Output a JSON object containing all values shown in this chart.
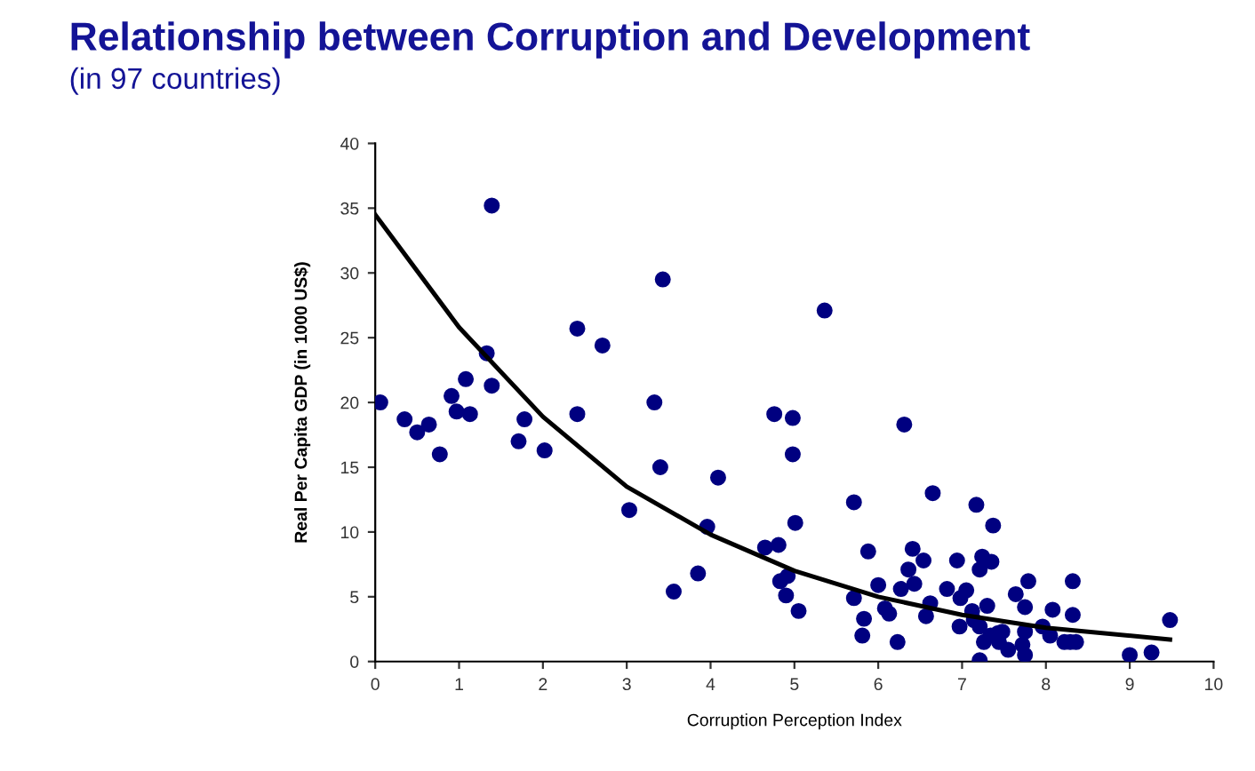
{
  "chart_data": {
    "type": "scatter",
    "title": "Relationship between Corruption and Development",
    "subtitle": "(in 97 countries)",
    "xlabel": "Corruption Perception Index",
    "ylabel": "Real Per Capita GDP (in 1000 US$)",
    "xlim": [
      0,
      10
    ],
    "xticks": [
      0,
      1,
      2,
      3,
      4,
      5,
      6,
      7,
      8,
      9,
      10
    ],
    "ylim": [
      0,
      40
    ],
    "yticks": [
      0,
      5,
      10,
      15,
      20,
      25,
      30,
      35,
      40
    ],
    "grid": false,
    "legend": false,
    "marker": "circle",
    "series": [
      {
        "color": "#000080",
        "x": [
          0.06,
          0.35,
          0.5,
          0.64,
          0.77,
          0.91,
          0.97,
          1.08,
          1.13,
          1.33,
          1.39,
          1.39,
          1.71,
          1.78,
          2.02,
          2.41,
          2.41,
          2.71,
          3.03,
          3.33,
          3.4,
          3.43,
          3.56,
          3.85,
          3.96,
          4.09,
          5.36,
          4.76,
          4.98,
          4.98,
          6.31,
          5.01,
          6.65,
          5.71,
          7.17,
          7.37,
          4.65,
          4.81,
          4.83,
          4.92,
          4.9,
          5.05,
          5.88,
          6.41,
          6.54,
          6.36,
          6.43,
          6.27,
          6.0,
          5.71,
          5.83,
          5.81,
          6.08,
          6.13,
          6.23,
          6.57,
          6.62,
          6.82,
          6.94,
          6.98,
          7.05,
          6.97,
          7.24,
          7.35,
          7.21,
          7.3,
          7.12,
          7.14,
          7.21,
          7.26,
          7.21,
          7.34,
          7.43,
          7.48,
          7.44,
          7.55,
          7.72,
          7.75,
          7.75,
          7.75,
          7.79,
          7.64,
          7.96,
          8.05,
          8.08,
          8.22,
          8.29,
          8.36,
          8.32,
          8.32,
          9.0,
          9.26,
          9.48
        ],
        "values": [
          20.0,
          18.7,
          17.7,
          18.3,
          16.0,
          20.5,
          19.3,
          21.8,
          19.1,
          23.8,
          35.2,
          21.3,
          17.0,
          18.7,
          16.3,
          25.7,
          19.1,
          24.4,
          11.7,
          20.0,
          15.0,
          29.5,
          5.4,
          6.8,
          10.4,
          14.2,
          27.1,
          19.1,
          18.8,
          16.0,
          18.3,
          10.7,
          13.0,
          12.3,
          12.1,
          10.5,
          8.8,
          9.0,
          6.2,
          6.6,
          5.1,
          3.9,
          8.5,
          8.7,
          7.8,
          7.1,
          6.0,
          5.6,
          5.9,
          4.9,
          3.3,
          2.0,
          4.1,
          3.7,
          1.5,
          3.5,
          4.5,
          5.6,
          7.8,
          4.9,
          5.5,
          2.7,
          8.1,
          7.7,
          7.1,
          4.3,
          3.9,
          3.2,
          2.7,
          1.5,
          0.1,
          2.0,
          2.2,
          2.3,
          1.5,
          0.9,
          1.3,
          0.5,
          2.3,
          4.2,
          6.2,
          5.2,
          2.7,
          2.0,
          4.0,
          1.5,
          1.5,
          1.5,
          3.6,
          6.2,
          0.5,
          0.7,
          3.2
        ]
      },
      {
        "type": "line",
        "color": "#000000",
        "marker": "none",
        "line_style": "solid",
        "x": [
          0,
          1,
          2,
          3,
          4,
          5,
          6,
          7,
          8,
          9.48
        ],
        "values": [
          34.5,
          25.8,
          18.9,
          13.5,
          9.8,
          7.0,
          5.0,
          3.6,
          2.6,
          1.7
        ]
      }
    ]
  }
}
